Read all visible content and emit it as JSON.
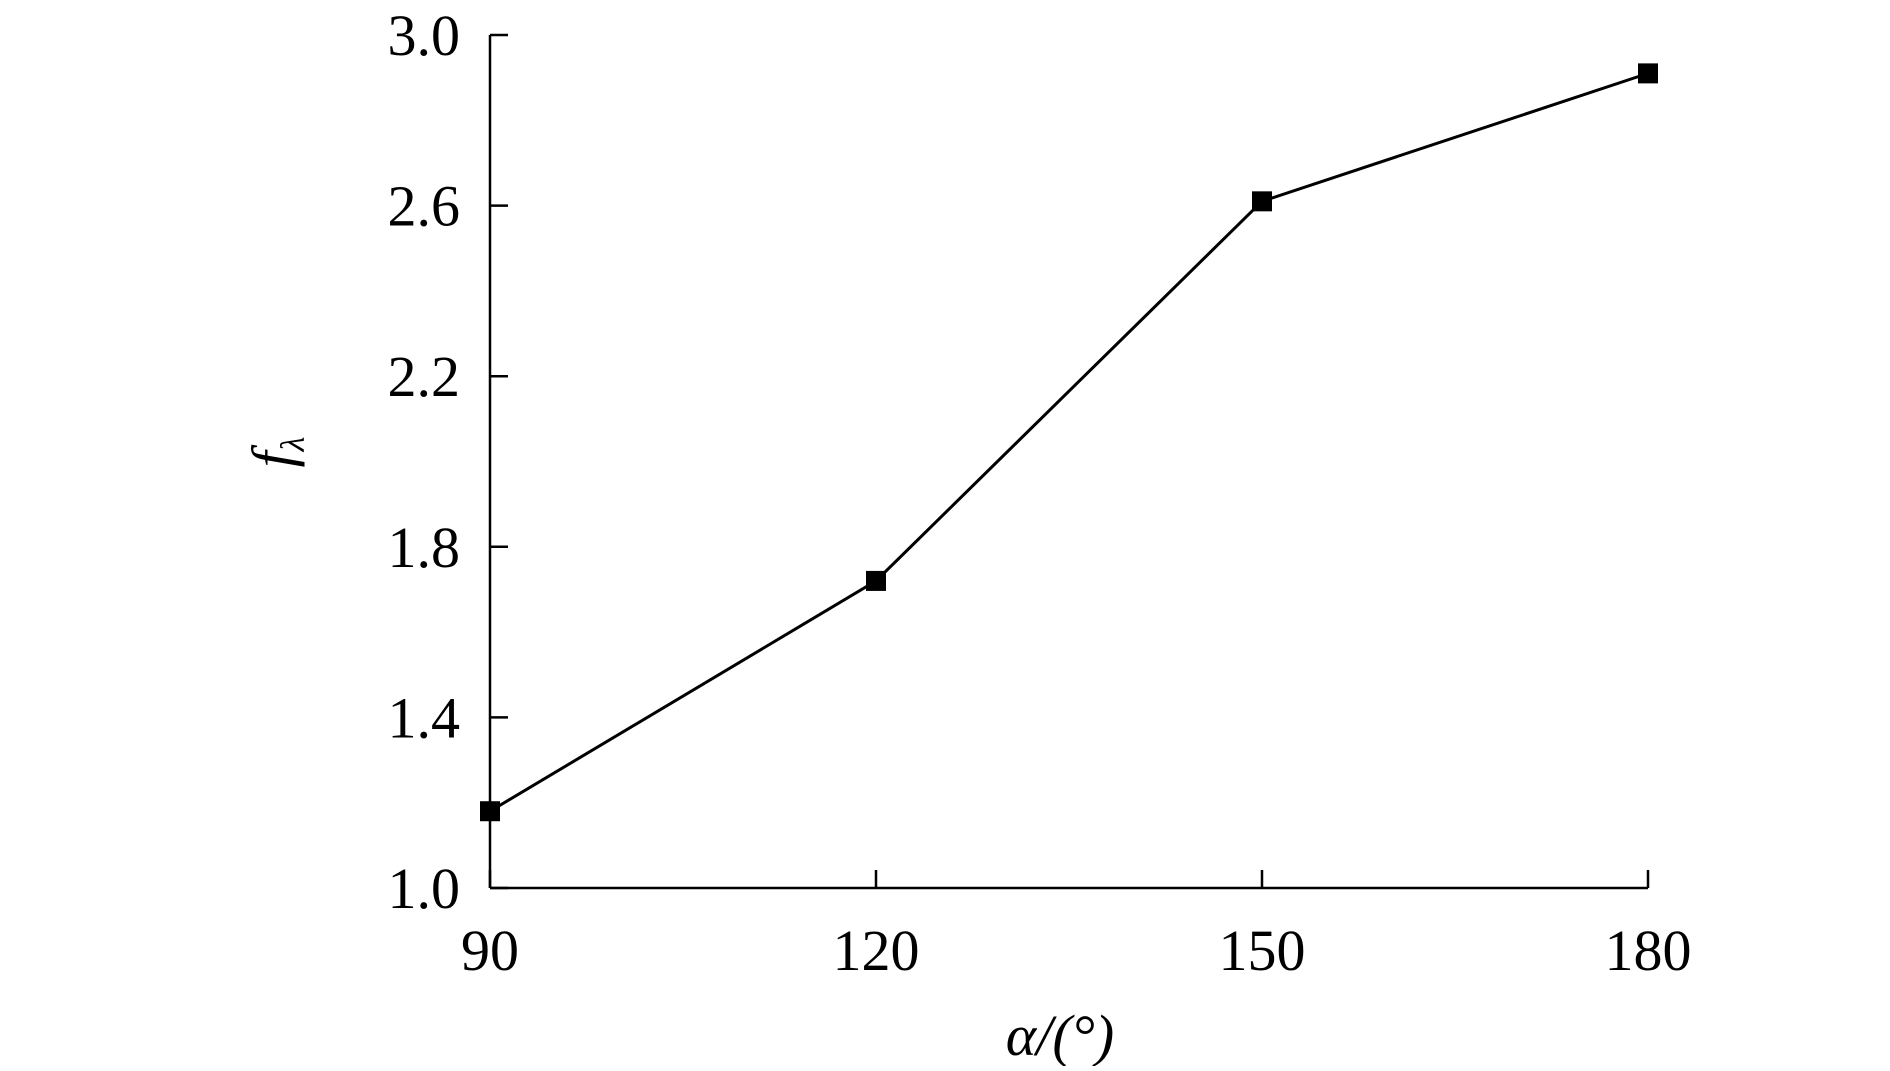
{
  "chart_data": {
    "type": "line",
    "title": "",
    "xlabel": "α/(°)",
    "ylabel": "fλ",
    "ylabel_parts": {
      "main": "f",
      "sub": "λ"
    },
    "x": [
      90,
      120,
      150,
      180
    ],
    "series": [
      {
        "values": [
          1.18,
          1.72,
          2.61,
          2.91
        ]
      }
    ],
    "xlim": [
      90,
      180
    ],
    "ylim": [
      1.0,
      3.0
    ],
    "xticks": [
      90,
      120,
      150,
      180
    ],
    "xtick_labels": [
      "90",
      "120",
      "150",
      "180"
    ],
    "yticks": [
      1.0,
      1.4,
      1.8,
      2.2,
      2.6,
      3.0
    ],
    "ytick_labels": [
      "1.0",
      "1.4",
      "1.8",
      "2.2",
      "2.6",
      "3.0"
    ],
    "marker": "square",
    "grid": false,
    "legend": "none",
    "colors": {
      "line": "#000000",
      "marker": "#000000",
      "axis": "#000000"
    }
  }
}
